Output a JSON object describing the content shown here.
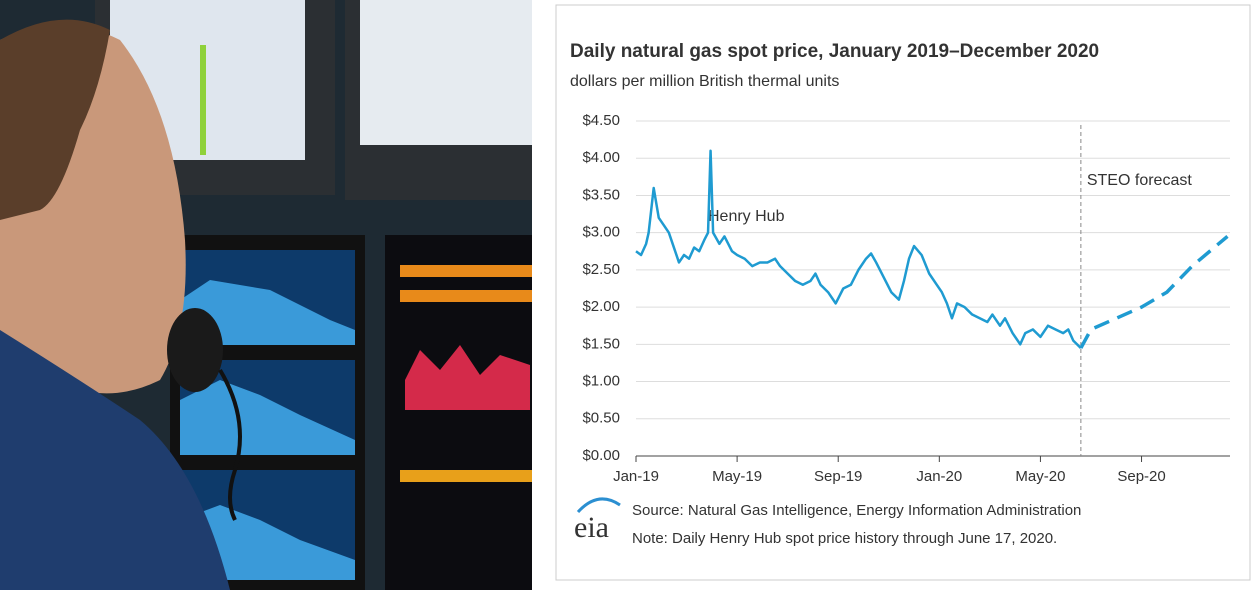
{
  "chart_data": {
    "type": "line",
    "title": "Daily natural gas spot price, January 2019–December 2020",
    "subtitle": "dollars per million British thermal units",
    "source": "Source: Natural Gas Intelligence, Energy Information Administration",
    "note": "Note: Daily Henry Hub spot price history through June 17, 2020.",
    "logo_text": "eia",
    "xlim": [
      0,
      23.5
    ],
    "xticks": [
      {
        "value": 0,
        "label": "Jan-19"
      },
      {
        "value": 4,
        "label": "May-19"
      },
      {
        "value": 8,
        "label": "Sep-19"
      },
      {
        "value": 12,
        "label": "Jan-20"
      },
      {
        "value": 16,
        "label": "May-20"
      },
      {
        "value": 20,
        "label": "Sep-20"
      }
    ],
    "ylim": [
      0,
      4.5
    ],
    "yticks": [
      {
        "value": 0,
        "label": "$0.00"
      },
      {
        "value": 0.5,
        "label": "$0.50"
      },
      {
        "value": 1,
        "label": "$1.00"
      },
      {
        "value": 1.5,
        "label": "$1.50"
      },
      {
        "value": 2,
        "label": "$2.00"
      },
      {
        "value": 2.5,
        "label": "$2.50"
      },
      {
        "value": 3,
        "label": "$3.00"
      },
      {
        "value": 3.5,
        "label": "$3.50"
      },
      {
        "value": 4,
        "label": "$4.00"
      },
      {
        "value": 4.5,
        "label": "$4.50"
      }
    ],
    "grid": true,
    "series": [
      {
        "name": "Henry Hub",
        "color": "#1f9bd1",
        "dashed": false,
        "x": [
          0,
          0.2,
          0.4,
          0.5,
          0.6,
          0.7,
          0.9,
          1.1,
          1.3,
          1.5,
          1.7,
          1.9,
          2.1,
          2.3,
          2.5,
          2.7,
          2.85,
          2.95,
          3.05,
          3.3,
          3.5,
          3.8,
          4.0,
          4.3,
          4.6,
          4.9,
          5.2,
          5.5,
          5.7,
          6.0,
          6.3,
          6.6,
          6.9,
          7.1,
          7.3,
          7.6,
          7.9,
          8.2,
          8.5,
          8.8,
          9.1,
          9.3,
          9.5,
          9.8,
          10.1,
          10.4,
          10.6,
          10.8,
          11.0,
          11.3,
          11.6,
          11.9,
          12.1,
          12.3,
          12.5,
          12.7,
          13.0,
          13.3,
          13.6,
          13.9,
          14.1,
          14.4,
          14.6,
          14.9,
          15.2,
          15.4,
          15.7,
          16.0,
          16.3,
          16.6,
          16.9,
          17.1,
          17.3,
          17.6
        ],
        "values": [
          2.75,
          2.7,
          2.85,
          3.0,
          3.3,
          3.6,
          3.2,
          3.1,
          3.0,
          2.8,
          2.6,
          2.7,
          2.65,
          2.8,
          2.75,
          2.9,
          3.0,
          4.1,
          3.0,
          2.85,
          2.95,
          2.75,
          2.7,
          2.65,
          2.55,
          2.6,
          2.6,
          2.65,
          2.55,
          2.45,
          2.35,
          2.3,
          2.35,
          2.45,
          2.3,
          2.2,
          2.05,
          2.25,
          2.3,
          2.5,
          2.65,
          2.72,
          2.6,
          2.4,
          2.2,
          2.1,
          2.35,
          2.65,
          2.82,
          2.7,
          2.45,
          2.3,
          2.2,
          2.05,
          1.85,
          2.05,
          2.0,
          1.9,
          1.85,
          1.8,
          1.9,
          1.75,
          1.85,
          1.65,
          1.5,
          1.65,
          1.7,
          1.6,
          1.75,
          1.7,
          1.65,
          1.7,
          1.55,
          1.45
        ]
      },
      {
        "name": "STEO forecast",
        "color": "#1f9bd1",
        "dashed": true,
        "x": [
          17.6,
          18,
          19,
          20,
          21,
          22,
          23.4
        ],
        "values": [
          1.45,
          1.7,
          1.85,
          2.0,
          2.2,
          2.55,
          2.95
        ]
      }
    ]
  }
}
